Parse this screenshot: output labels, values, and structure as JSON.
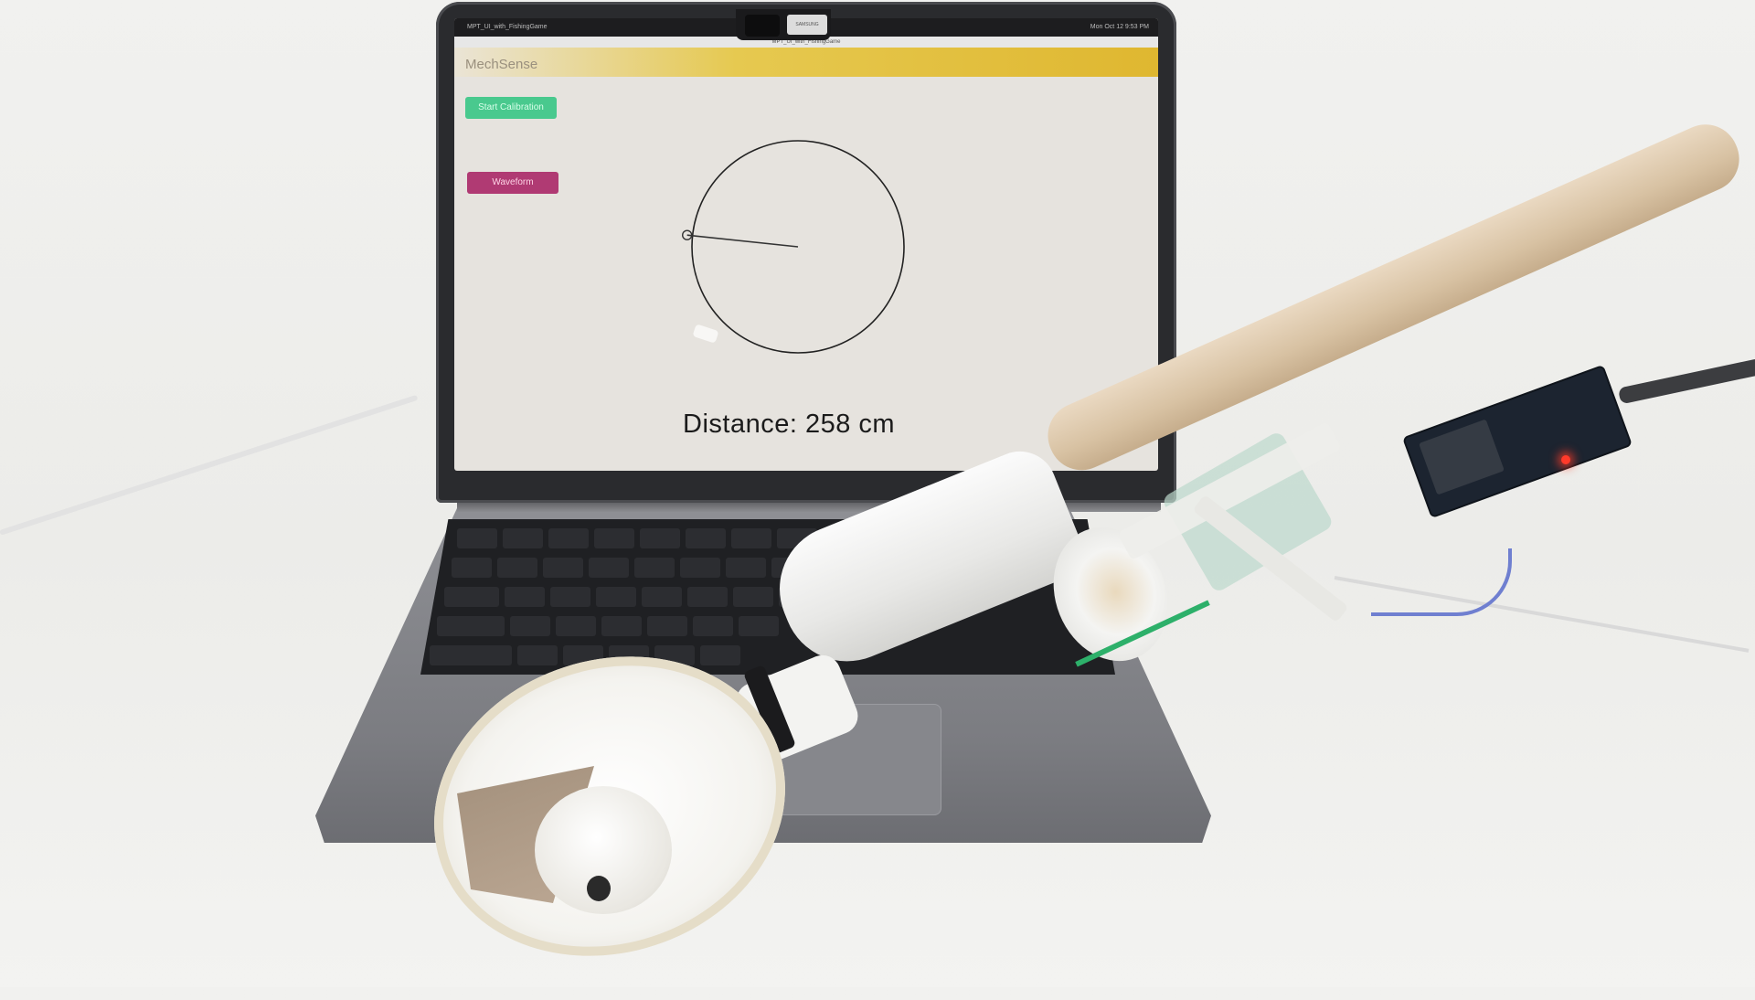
{
  "window": {
    "title": "MPT_UI_with_FishingGame",
    "menubar_clock": "Mon Oct 12  9:53 PM",
    "notch_label": "SAMSUNG"
  },
  "app": {
    "brand": "MechSense",
    "buttons": {
      "start_calibration": "Start Calibration",
      "waveform": "Waveform"
    },
    "distance_text": "Distance: 258 cm"
  },
  "dial": {
    "pointer_angle_deg": 186
  },
  "icons": {
    "dial": "circular-dial-icon",
    "pointer": "pointer-needle-icon"
  },
  "colors": {
    "header_accent": "#dfb730",
    "calibration_button": "#49c98e",
    "waveform_button": "#b03a73",
    "status_led": "#ff3a2a"
  }
}
